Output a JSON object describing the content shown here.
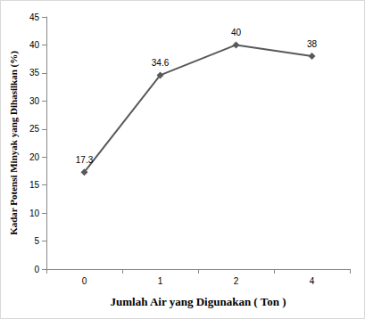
{
  "chart_data": {
    "type": "line",
    "x_label": "Jumlah Air yang Digunakan ( Ton )",
    "y_label": "Kadar Potensi Minyak yang Dihasilkan (%)",
    "categories": [
      "0",
      "1",
      "2",
      "4"
    ],
    "values": [
      17.3,
      34.6,
      40,
      38
    ],
    "color": "#595959",
    "marker": "diamond",
    "ylim": [
      0,
      45
    ],
    "yticks": [
      0,
      5,
      10,
      15,
      20,
      25,
      30,
      35,
      40,
      45
    ],
    "grid": false,
    "data_labels": true
  }
}
